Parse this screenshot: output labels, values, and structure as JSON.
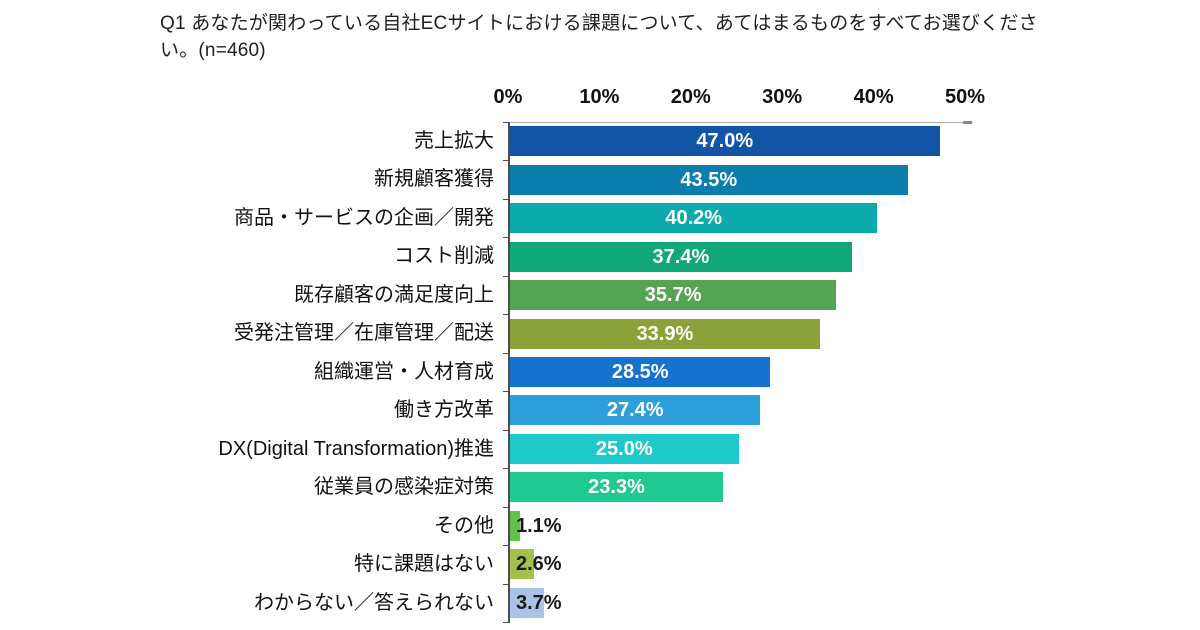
{
  "title": "Q1 あなたが関わっている自社ECサイトにおける課題について、あてはまるものをすべてお選びください。(n=460)",
  "chart_data": {
    "type": "bar",
    "orientation": "horizontal",
    "title": "Q1 あなたが関わっている自社ECサイトにおける課題について、あてはまるものをすべてお選びください。(n=460)",
    "sample_size_text": "n=460",
    "categories": [
      "売上拡大",
      "新規顧客獲得",
      "商品・サービスの企画／開発",
      "コスト削減",
      "既存顧客の満足度向上",
      "受発注管理／在庫管理／配送",
      "組織運営・人材育成",
      "働き方改革",
      "DX(Digital Transformation)推進",
      "従業員の感染症対策",
      "その他",
      "特に課題はない",
      "わからない／答えられない"
    ],
    "values": [
      47.0,
      43.5,
      40.2,
      37.4,
      35.7,
      33.9,
      28.5,
      27.4,
      25.0,
      23.3,
      1.1,
      2.6,
      3.7
    ],
    "value_labels": [
      "47.0%",
      "43.5%",
      "40.2%",
      "37.4%",
      "35.7%",
      "33.9%",
      "28.5%",
      "27.4%",
      "25.0%",
      "23.3%",
      "1.1%",
      "2.6%",
      "3.7%"
    ],
    "bar_colors": [
      "#1254a6",
      "#0b7eae",
      "#0caaab",
      "#10a878",
      "#55a355",
      "#8ba23b",
      "#1572cd",
      "#2c9fdb",
      "#1fc9cb",
      "#21c891",
      "#63bf4e",
      "#a3c04a",
      "#a9c4e6"
    ],
    "pattern_bar_index": 12,
    "x_ticks": [
      "0%",
      "10%",
      "20%",
      "30%",
      "40%",
      "50%"
    ],
    "xlim": [
      0,
      50
    ],
    "inside_label_threshold": 20,
    "inside_label_color": "#ffffff",
    "outside_label_color": "#1a1a1a",
    "axis_color": "#4d4d4d",
    "gridline_color": "#ababab",
    "grid": false,
    "legend": false
  }
}
